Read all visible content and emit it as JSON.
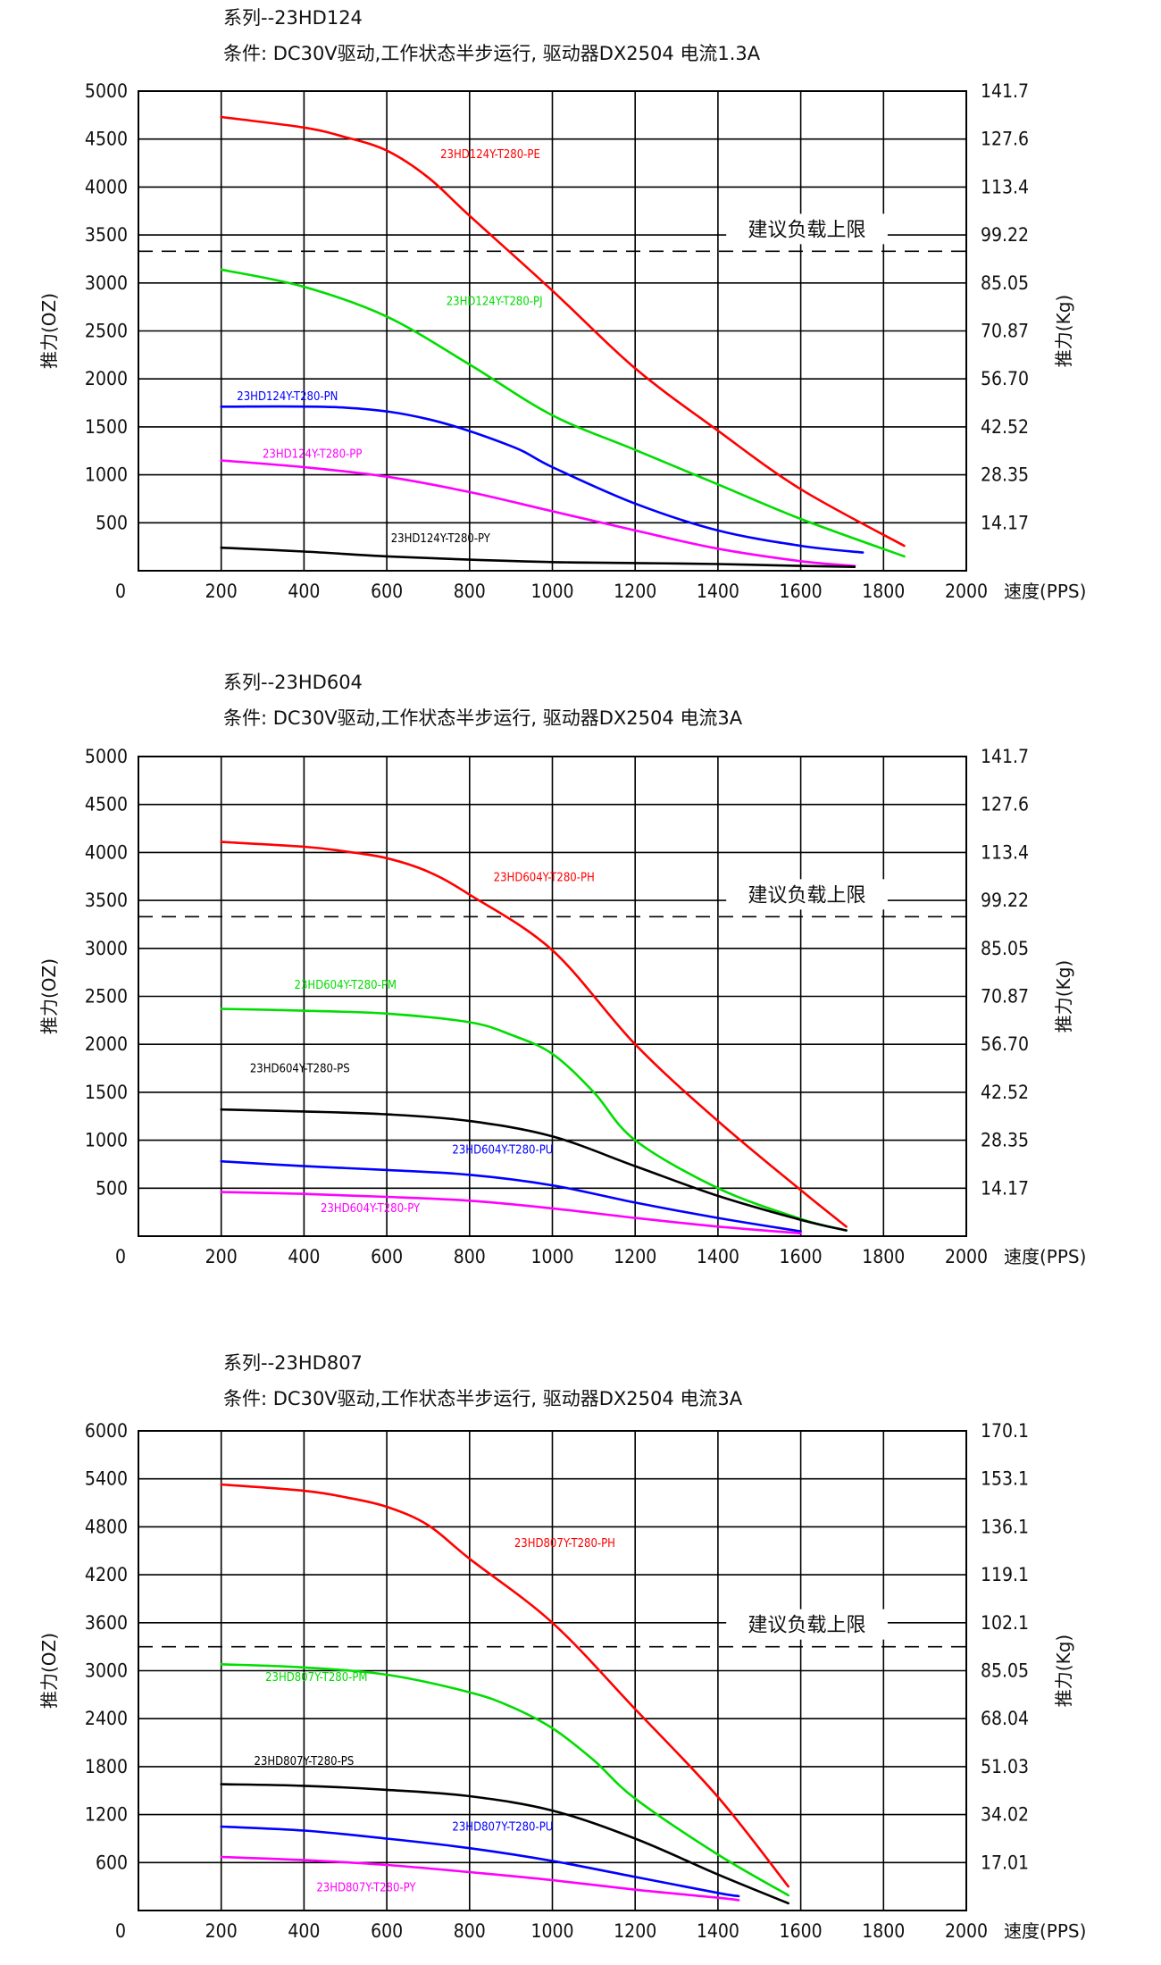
{
  "chart_data": [
    {
      "type": "line",
      "series_title": "系列--23HD124",
      "condition": "条件: DC30V驱动,工作状态半步运行, 驱动器DX2504 电流1.3A",
      "xlabel": "速度(PPS)",
      "ylabel": "推力(OZ)",
      "y2label": "推力(Kg)",
      "xlim": [
        0,
        2000
      ],
      "ylim": [
        0,
        5000
      ],
      "x_ticks": [
        "0",
        "200",
        "400",
        "600",
        "800",
        "1000",
        "1200",
        "1400",
        "1600",
        "1800",
        "2000"
      ],
      "y_ticks": [
        "500",
        "1000",
        "1500",
        "2000",
        "2500",
        "3000",
        "3500",
        "4000",
        "4500",
        "5000"
      ],
      "y2_ticks": [
        "14.17",
        "28.35",
        "42.52",
        "56.70",
        "70.87",
        "85.05",
        "99.22",
        "113.4",
        "127.6",
        "141.7"
      ],
      "limit_value": 3330,
      "limit_label": "建议负载上限",
      "grid": true,
      "series": [
        {
          "name": "23HD124Y-T280-PE",
          "color": "#ff0000",
          "label_at": [
            850,
            4300
          ],
          "x": [
            200,
            400,
            500,
            600,
            700,
            800,
            1000,
            1200,
            1400,
            1600,
            1850
          ],
          "y": [
            4730,
            4620,
            4520,
            4380,
            4100,
            3700,
            2920,
            2110,
            1460,
            850,
            260
          ]
        },
        {
          "name": "23HD124Y-T280-PJ",
          "color": "#00dd00",
          "label_at": [
            860,
            2770
          ],
          "x": [
            200,
            400,
            600,
            800,
            1000,
            1200,
            1400,
            1600,
            1850
          ],
          "y": [
            3140,
            2960,
            2650,
            2150,
            1620,
            1260,
            900,
            540,
            150
          ]
        },
        {
          "name": "23HD124Y-T280-PN",
          "color": "#0000ff",
          "label_at": [
            360,
            1780
          ],
          "x": [
            200,
            500,
            700,
            900,
            1000,
            1200,
            1400,
            1600,
            1750
          ],
          "y": [
            1710,
            1700,
            1580,
            1300,
            1080,
            700,
            420,
            260,
            190
          ]
        },
        {
          "name": "23HD124Y-T280-PP",
          "color": "#ff00ff",
          "label_at": [
            420,
            1180
          ],
          "x": [
            200,
            400,
            600,
            800,
            1000,
            1200,
            1400,
            1600,
            1730
          ],
          "y": [
            1150,
            1080,
            980,
            820,
            620,
            420,
            230,
            100,
            50
          ]
        },
        {
          "name": "23HD124Y-T280-PY",
          "color": "#000000",
          "label_at": [
            730,
            300
          ],
          "x": [
            200,
            400,
            600,
            800,
            1000,
            1200,
            1400,
            1600,
            1730
          ],
          "y": [
            240,
            200,
            150,
            115,
            90,
            80,
            70,
            50,
            40
          ]
        }
      ]
    },
    {
      "type": "line",
      "series_title": "系列--23HD604",
      "condition": "条件: DC30V驱动,工作状态半步运行, 驱动器DX2504 电流3A",
      "xlabel": "速度(PPS)",
      "ylabel": "推力(OZ)",
      "y2label": "推力(Kg)",
      "xlim": [
        0,
        2000
      ],
      "ylim": [
        0,
        5000
      ],
      "x_ticks": [
        "0",
        "200",
        "400",
        "600",
        "800",
        "1000",
        "1200",
        "1400",
        "1600",
        "1800",
        "2000"
      ],
      "y_ticks": [
        "500",
        "1000",
        "1500",
        "2000",
        "2500",
        "3000",
        "3500",
        "4000",
        "4500",
        "5000"
      ],
      "y2_ticks": [
        "14.17",
        "28.35",
        "42.52",
        "56.70",
        "70.87",
        "85.05",
        "99.22",
        "113.4",
        "127.6",
        "141.7"
      ],
      "limit_value": 3330,
      "limit_label": "建议负载上限",
      "grid": true,
      "series": [
        {
          "name": "23HD604Y-T280-PH",
          "color": "#ff0000",
          "label_at": [
            980,
            3700
          ],
          "x": [
            200,
            400,
            500,
            600,
            700,
            800,
            1000,
            1200,
            1400,
            1600,
            1710
          ],
          "y": [
            4110,
            4060,
            4010,
            3940,
            3800,
            3560,
            2980,
            2000,
            1200,
            480,
            100
          ]
        },
        {
          "name": "23HD604Y-T280-PM",
          "color": "#00dd00",
          "label_at": [
            500,
            2580
          ],
          "x": [
            200,
            400,
            600,
            800,
            900,
            1000,
            1100,
            1200,
            1400,
            1600,
            1710
          ],
          "y": [
            2370,
            2350,
            2320,
            2230,
            2100,
            1900,
            1500,
            1000,
            500,
            180,
            60
          ]
        },
        {
          "name": "23HD604Y-T280-PS",
          "color": "#000000",
          "label_at": [
            390,
            1710
          ],
          "x": [
            200,
            400,
            600,
            800,
            1000,
            1200,
            1400,
            1600,
            1710
          ],
          "y": [
            1320,
            1300,
            1270,
            1200,
            1040,
            730,
            420,
            170,
            60
          ]
        },
        {
          "name": "23HD604Y-T280-PU",
          "color": "#0000ff",
          "label_at": [
            880,
            860
          ],
          "x": [
            200,
            400,
            600,
            800,
            1000,
            1200,
            1400,
            1600
          ],
          "y": [
            780,
            730,
            690,
            640,
            530,
            350,
            190,
            50
          ]
        },
        {
          "name": "23HD604Y-T280-PY",
          "color": "#ff00ff",
          "label_at": [
            560,
            250
          ],
          "x": [
            200,
            400,
            600,
            800,
            1000,
            1200,
            1400,
            1600
          ],
          "y": [
            460,
            440,
            410,
            370,
            290,
            190,
            100,
            30
          ]
        }
      ]
    },
    {
      "type": "line",
      "series_title": "系列--23HD807",
      "condition": "条件: DC30V驱动,工作状态半步运行, 驱动器DX2504 电流3A",
      "xlabel": "速度(PPS)",
      "ylabel": "推力(OZ)",
      "y2label": "推力(Kg)",
      "xlim": [
        0,
        2000
      ],
      "ylim": [
        0,
        6000
      ],
      "x_ticks": [
        "0",
        "200",
        "400",
        "600",
        "800",
        "1000",
        "1200",
        "1400",
        "1600",
        "1800",
        "2000"
      ],
      "y_ticks": [
        "600",
        "1200",
        "1800",
        "2400",
        "3000",
        "3600",
        "4200",
        "4800",
        "5400",
        "6000"
      ],
      "y2_ticks": [
        "17.01",
        "34.02",
        "51.03",
        "68.04",
        "85.05",
        "102.1",
        "119.1",
        "136.1",
        "153.1",
        "170.1"
      ],
      "limit_value": 3300,
      "limit_label": "建议负载上限",
      "grid": true,
      "series": [
        {
          "name": "23HD807Y-T280-PH",
          "color": "#ff0000",
          "label_at": [
            1030,
            4550
          ],
          "x": [
            200,
            400,
            500,
            600,
            700,
            800,
            1000,
            1200,
            1400,
            1570
          ],
          "y": [
            5330,
            5250,
            5170,
            5050,
            4820,
            4400,
            3600,
            2520,
            1420,
            300
          ]
        },
        {
          "name": "23HD807Y-T280-PM",
          "color": "#00dd00",
          "label_at": [
            430,
            2870
          ],
          "x": [
            200,
            400,
            600,
            800,
            900,
            1000,
            1100,
            1200,
            1400,
            1570
          ],
          "y": [
            3080,
            3040,
            2950,
            2730,
            2550,
            2280,
            1880,
            1400,
            700,
            190
          ]
        },
        {
          "name": "23HD807Y-T280-PS",
          "color": "#000000",
          "label_at": [
            400,
            1820
          ],
          "x": [
            200,
            400,
            600,
            800,
            1000,
            1200,
            1400,
            1570
          ],
          "y": [
            1580,
            1560,
            1510,
            1430,
            1250,
            900,
            450,
            90
          ]
        },
        {
          "name": "23HD807Y-T280-PU",
          "color": "#0000ff",
          "label_at": [
            880,
            1000
          ],
          "x": [
            200,
            400,
            600,
            800,
            1000,
            1200,
            1400,
            1450
          ],
          "y": [
            1050,
            1000,
            900,
            780,
            620,
            420,
            220,
            180
          ]
        },
        {
          "name": "23HD807Y-T280-PY",
          "color": "#ff00ff",
          "label_at": [
            550,
            240
          ],
          "x": [
            200,
            400,
            600,
            800,
            1000,
            1200,
            1400,
            1450
          ],
          "y": [
            670,
            630,
            570,
            480,
            380,
            260,
            160,
            130
          ]
        }
      ]
    }
  ]
}
